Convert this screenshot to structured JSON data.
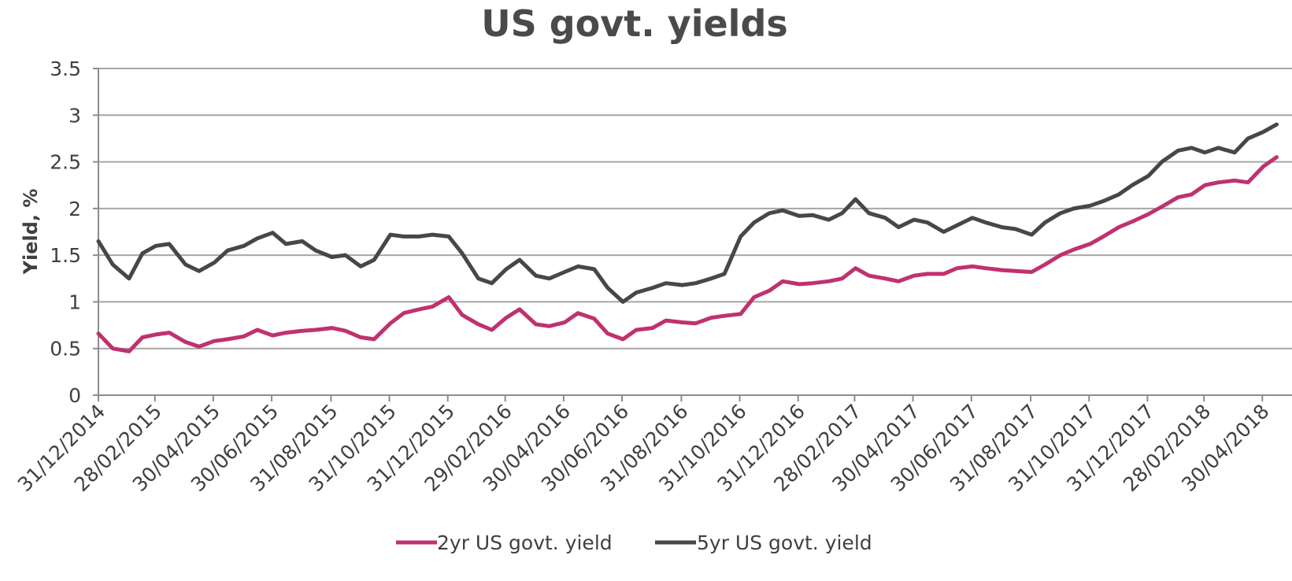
{
  "chart_data": {
    "type": "line",
    "title": "US govt. yields",
    "xlabel": "",
    "ylabel": "Yield, %",
    "ylim": [
      0,
      3.5
    ],
    "yticks": [
      "0",
      "0.5",
      "1",
      "1.5",
      "2",
      "2.5",
      "3",
      "3.5"
    ],
    "xticks": [
      "31/12/2014",
      "28/02/2015",
      "30/04/2015",
      "30/06/2015",
      "31/08/2015",
      "31/10/2015",
      "31/12/2015",
      "29/02/2016",
      "30/04/2016",
      "30/06/2016",
      "31/08/2016",
      "31/10/2016",
      "31/12/2016",
      "28/02/2017",
      "30/04/2017",
      "30/06/2017",
      "31/08/2017",
      "31/10/2017",
      "31/12/2017",
      "28/02/2018",
      "30/04/2018"
    ],
    "grid": true,
    "legend": "bottom",
    "x": [
      "2014-12-31",
      "2015-01-15",
      "2015-02-01",
      "2015-02-15",
      "2015-03-01",
      "2015-03-15",
      "2015-04-01",
      "2015-04-15",
      "2015-05-01",
      "2015-05-15",
      "2015-06-01",
      "2015-06-15",
      "2015-07-01",
      "2015-07-15",
      "2015-08-01",
      "2015-08-15",
      "2015-09-01",
      "2015-09-15",
      "2015-10-01",
      "2015-10-15",
      "2015-11-01",
      "2015-11-15",
      "2015-12-01",
      "2015-12-15",
      "2016-01-01",
      "2016-01-15",
      "2016-02-01",
      "2016-02-15",
      "2016-03-01",
      "2016-03-15",
      "2016-04-01",
      "2016-04-15",
      "2016-05-01",
      "2016-05-15",
      "2016-06-01",
      "2016-06-15",
      "2016-07-01",
      "2016-07-15",
      "2016-08-01",
      "2016-08-15",
      "2016-09-01",
      "2016-09-15",
      "2016-10-01",
      "2016-10-15",
      "2016-11-01",
      "2016-11-15",
      "2016-12-01",
      "2016-12-15",
      "2017-01-01",
      "2017-01-15",
      "2017-02-01",
      "2017-02-15",
      "2017-03-01",
      "2017-03-15",
      "2017-04-01",
      "2017-04-15",
      "2017-05-01",
      "2017-05-15",
      "2017-06-01",
      "2017-06-15",
      "2017-07-01",
      "2017-07-15",
      "2017-08-01",
      "2017-08-15",
      "2017-09-01",
      "2017-09-15",
      "2017-10-01",
      "2017-10-15",
      "2017-11-01",
      "2017-11-15",
      "2017-12-01",
      "2017-12-15",
      "2018-01-01",
      "2018-01-15",
      "2018-02-01",
      "2018-02-15",
      "2018-03-01",
      "2018-03-15",
      "2018-04-01",
      "2018-04-15",
      "2018-05-01",
      "2018-05-15"
    ],
    "series": [
      {
        "name": "2yr US govt. yield",
        "color": "#c0316f",
        "values": [
          0.66,
          0.5,
          0.47,
          0.62,
          0.65,
          0.67,
          0.57,
          0.52,
          0.58,
          0.6,
          0.63,
          0.7,
          0.64,
          0.67,
          0.69,
          0.7,
          0.72,
          0.69,
          0.62,
          0.6,
          0.77,
          0.88,
          0.92,
          0.95,
          1.05,
          0.86,
          0.76,
          0.7,
          0.83,
          0.92,
          0.76,
          0.74,
          0.78,
          0.88,
          0.82,
          0.66,
          0.6,
          0.7,
          0.72,
          0.8,
          0.78,
          0.77,
          0.83,
          0.85,
          0.87,
          1.05,
          1.12,
          1.22,
          1.19,
          1.2,
          1.22,
          1.25,
          1.36,
          1.28,
          1.25,
          1.22,
          1.28,
          1.3,
          1.3,
          1.36,
          1.38,
          1.36,
          1.34,
          1.33,
          1.32,
          1.4,
          1.5,
          1.56,
          1.62,
          1.7,
          1.8,
          1.86,
          1.94,
          2.02,
          2.12,
          2.15,
          2.25,
          2.28,
          2.3,
          2.28,
          2.45,
          2.55
        ]
      },
      {
        "name": "5yr US govt. yield",
        "color": "#474747",
        "values": [
          1.65,
          1.4,
          1.25,
          1.52,
          1.6,
          1.62,
          1.4,
          1.33,
          1.42,
          1.55,
          1.6,
          1.68,
          1.74,
          1.62,
          1.65,
          1.55,
          1.48,
          1.5,
          1.38,
          1.45,
          1.72,
          1.7,
          1.7,
          1.72,
          1.7,
          1.52,
          1.25,
          1.2,
          1.35,
          1.45,
          1.28,
          1.25,
          1.32,
          1.38,
          1.35,
          1.15,
          1.0,
          1.1,
          1.15,
          1.2,
          1.18,
          1.2,
          1.25,
          1.3,
          1.7,
          1.85,
          1.95,
          1.98,
          1.92,
          1.93,
          1.88,
          1.95,
          2.1,
          1.95,
          1.9,
          1.8,
          1.88,
          1.85,
          1.75,
          1.82,
          1.9,
          1.85,
          1.8,
          1.78,
          1.72,
          1.85,
          1.95,
          2.0,
          2.03,
          2.08,
          2.15,
          2.25,
          2.35,
          2.5,
          2.62,
          2.65,
          2.6,
          2.65,
          2.6,
          2.75,
          2.82,
          2.9
        ]
      }
    ]
  }
}
